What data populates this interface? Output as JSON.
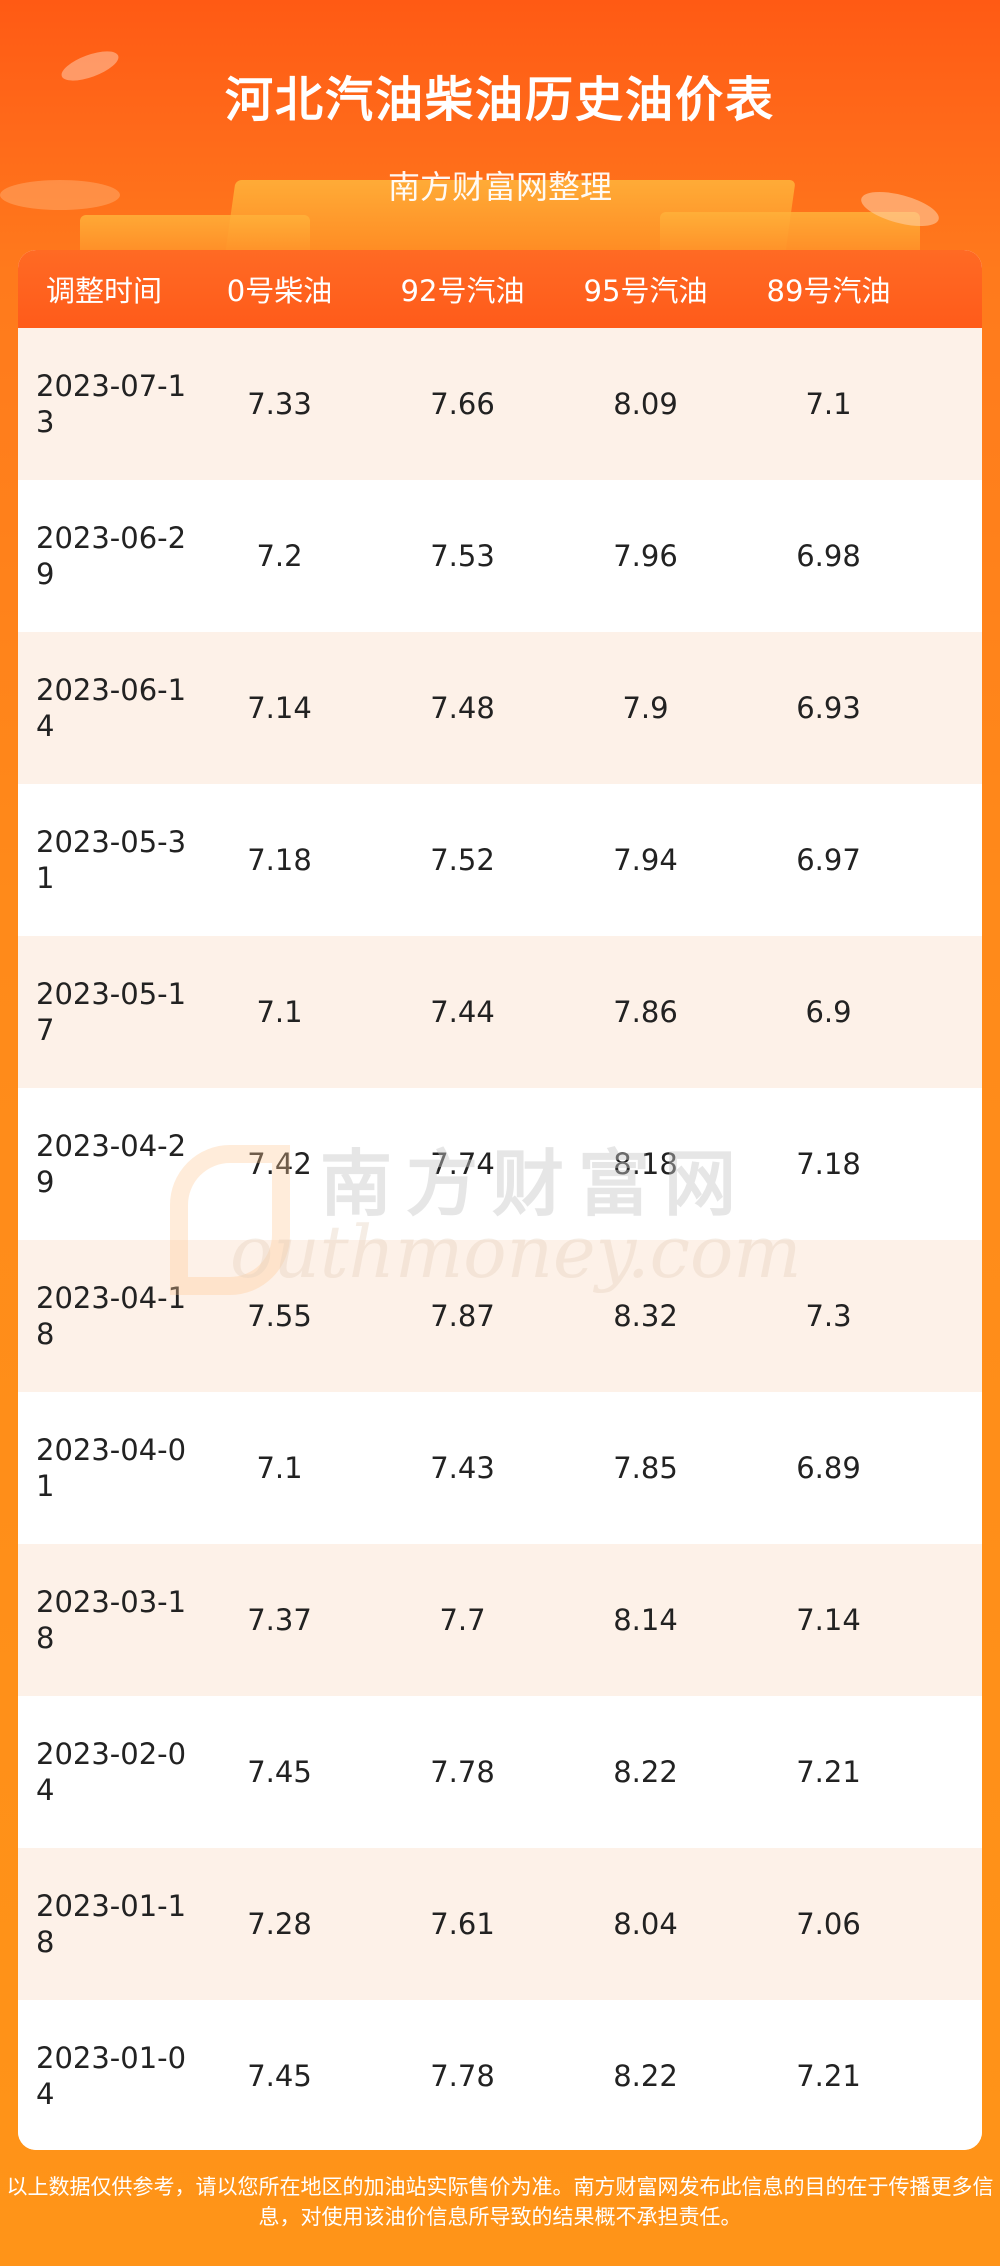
{
  "header": {
    "title": "河北汽油柴油历史油价表",
    "subtitle": "南方财富网整理"
  },
  "table": {
    "columns": [
      "调整时间",
      "0号柴油",
      "92号汽油",
      "95号汽油",
      "89号汽油"
    ],
    "rows": [
      [
        "2023-07-13",
        "7.33",
        "7.66",
        "8.09",
        "7.1"
      ],
      [
        "2023-06-29",
        "7.2",
        "7.53",
        "7.96",
        "6.98"
      ],
      [
        "2023-06-14",
        "7.14",
        "7.48",
        "7.9",
        "6.93"
      ],
      [
        "2023-05-31",
        "7.18",
        "7.52",
        "7.94",
        "6.97"
      ],
      [
        "2023-05-17",
        "7.1",
        "7.44",
        "7.86",
        "6.9"
      ],
      [
        "2023-04-29",
        "7.42",
        "7.74",
        "8.18",
        "7.18"
      ],
      [
        "2023-04-18",
        "7.55",
        "7.87",
        "8.32",
        "7.3"
      ],
      [
        "2023-04-01",
        "7.1",
        "7.43",
        "7.85",
        "6.89"
      ],
      [
        "2023-03-18",
        "7.37",
        "7.7",
        "8.14",
        "7.14"
      ],
      [
        "2023-02-04",
        "7.45",
        "7.78",
        "8.22",
        "7.21"
      ],
      [
        "2023-01-18",
        "7.28",
        "7.61",
        "8.04",
        "7.06"
      ],
      [
        "2023-01-04",
        "7.45",
        "7.78",
        "8.22",
        "7.21"
      ]
    ]
  },
  "watermark": {
    "cn": "南方财富网",
    "en": "outhmoney.com"
  },
  "footer": {
    "text": "以上数据仅供参考，请以您所在地区的加油站实际售价为准。南方财富网发布此信息的目的在于传播更多信息，对使用该油价信息所导致的结果概不承担责任。"
  },
  "colors": {
    "accent": "#ff5b1a",
    "row_alt": "#fdf1e8",
    "background_bottom": "#ff9418"
  }
}
